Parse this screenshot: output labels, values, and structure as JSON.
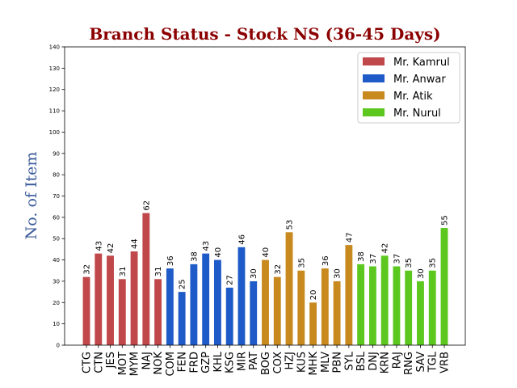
{
  "chart_data": {
    "type": "bar",
    "title": "Branch Status - Stock NS (36-45 Days)",
    "ylabel": "No. of Item",
    "xlabel": "",
    "ylim": [
      0,
      140
    ],
    "yticks": [
      0,
      10,
      20,
      30,
      40,
      50,
      60,
      70,
      80,
      90,
      100,
      110,
      120,
      130,
      140
    ],
    "legend_position": "top-right",
    "grid": false,
    "series": [
      {
        "name": "Mr. Kamrul",
        "color": "#c0474a",
        "categories": [
          "CTG",
          "CTN",
          "JES",
          "MOT",
          "MYM",
          "NAJ",
          "NOK"
        ],
        "values": [
          32,
          43,
          42,
          31,
          44,
          62,
          31
        ]
      },
      {
        "name": "Mr. Anwar",
        "color": "#1f5bc8",
        "categories": [
          "COM",
          "FEN",
          "FRD",
          "GZP",
          "KHL",
          "KSG",
          "MIR",
          "PAT"
        ],
        "values": [
          36,
          25,
          38,
          43,
          40,
          27,
          46,
          30
        ]
      },
      {
        "name": "Mr. Atik",
        "color": "#c8891f",
        "categories": [
          "BOG",
          "COX",
          "HZJ",
          "KUS",
          "MHK",
          "MLV",
          "PBN",
          "SYL"
        ],
        "values": [
          40,
          32,
          53,
          35,
          20,
          36,
          30,
          47
        ]
      },
      {
        "name": "Mr. Nurul",
        "color": "#5cc81f",
        "categories": [
          "BSL",
          "DNJ",
          "KRN",
          "RAJ",
          "RNG",
          "SAV",
          "TGL",
          "VRB"
        ],
        "values": [
          38,
          37,
          42,
          37,
          35,
          30,
          35,
          55
        ]
      }
    ]
  }
}
